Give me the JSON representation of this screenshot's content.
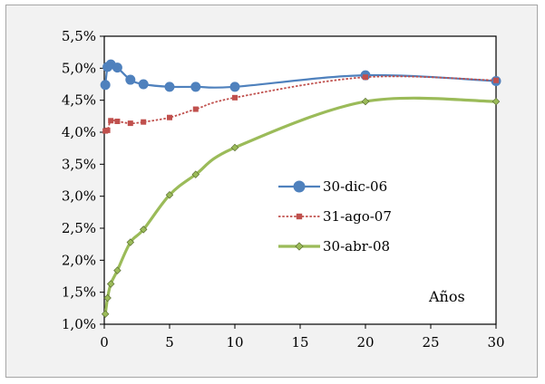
{
  "chart_data": {
    "type": "line",
    "title": "",
    "xlabel": "",
    "ylabel": "",
    "xlim": [
      0,
      30
    ],
    "ylim": [
      0.01,
      0.055
    ],
    "x_ticks": [
      0,
      5,
      10,
      15,
      20,
      25,
      30
    ],
    "x_tick_labels": [
      "0",
      "5",
      "10",
      "15",
      "20",
      "25",
      "30"
    ],
    "y_ticks": [
      0.01,
      0.015,
      0.02,
      0.025,
      0.03,
      0.035,
      0.04,
      0.045,
      0.05,
      0.055
    ],
    "y_tick_labels": [
      "1,0%",
      "1,5%",
      "2,0%",
      "2,5%",
      "3,0%",
      "3,5%",
      "4,0%",
      "4,5%",
      "5,0%",
      "5,5%"
    ],
    "grid": false,
    "legend_position": "center-right",
    "annotation": "Años",
    "series": [
      {
        "name": "30-dic-06",
        "color": "#4f81bd",
        "marker": "circle",
        "x": [
          0.08,
          0.25,
          0.5,
          1,
          2,
          3,
          5,
          7,
          10,
          20,
          30
        ],
        "y": [
          0.0474,
          0.0502,
          0.0506,
          0.0501,
          0.0482,
          0.0475,
          0.0471,
          0.0471,
          0.0471,
          0.0489,
          0.048
        ]
      },
      {
        "name": "31-ago-07",
        "color": "#c0504d",
        "marker": "square",
        "dashed": true,
        "x": [
          0.08,
          0.25,
          0.5,
          1,
          2,
          3,
          5,
          7,
          10,
          20,
          30
        ],
        "y": [
          0.0402,
          0.0403,
          0.0418,
          0.0417,
          0.0414,
          0.0416,
          0.0423,
          0.0436,
          0.0454,
          0.0486,
          0.0481
        ]
      },
      {
        "name": "30-abr-08",
        "color": "#9bbb59",
        "marker": "diamond",
        "x": [
          0.08,
          0.25,
          0.5,
          1,
          2,
          3,
          5,
          7,
          10,
          20,
          30
        ],
        "y": [
          0.0116,
          0.0141,
          0.0163,
          0.0184,
          0.0228,
          0.0248,
          0.0302,
          0.0334,
          0.0376,
          0.0448,
          0.0448
        ]
      }
    ]
  }
}
